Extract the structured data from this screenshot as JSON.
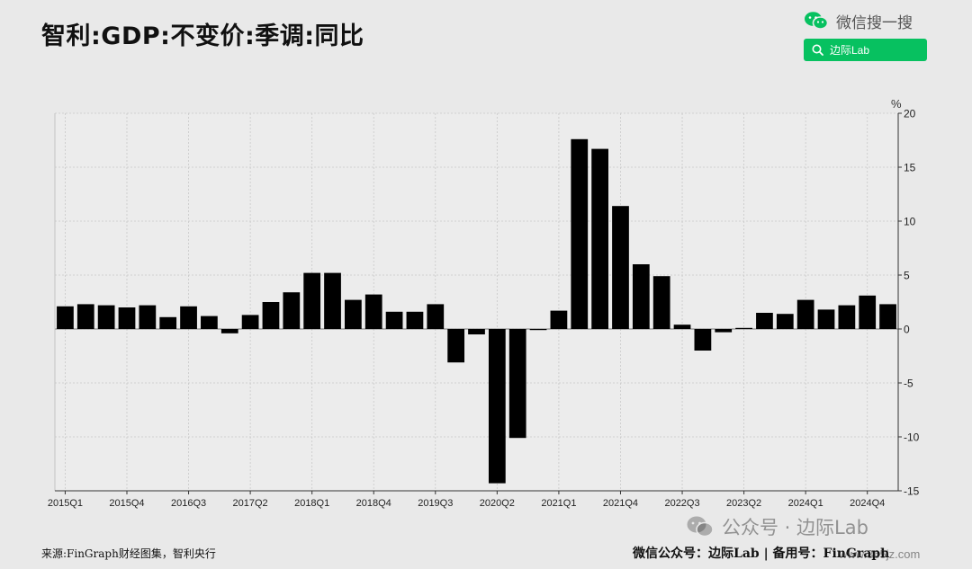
{
  "title": "智利:GDP:不变价:季调:同比",
  "wechat_brand": {
    "label": "微信搜一搜",
    "icon": "wechat-icon"
  },
  "search": {
    "label": "边际Lab",
    "icon": "search-icon",
    "color": "#07c160"
  },
  "footer": {
    "source": "来源:FinGraph财经图集，智利央行",
    "right": "微信公众号：边际Lab  |  备用号：FinGraph"
  },
  "watermark": {
    "text": "公众号 · 边际Lab",
    "icon": "wechat-icon"
  },
  "site_watermark": "www.365jz.com",
  "chart_data": {
    "type": "bar",
    "ylabel": "%",
    "ylim": [
      -15,
      20
    ],
    "yticks": [
      20,
      15,
      10,
      5,
      0,
      -5,
      -10,
      -15
    ],
    "grid": true,
    "bar_color": "#000000",
    "categories": [
      "2015Q1",
      "2015Q2",
      "2015Q3",
      "2015Q4",
      "2016Q1",
      "2016Q2",
      "2016Q3",
      "2016Q4",
      "2017Q1",
      "2017Q2",
      "2017Q3",
      "2017Q4",
      "2018Q1",
      "2018Q2",
      "2018Q3",
      "2018Q4",
      "2019Q1",
      "2019Q2",
      "2019Q3",
      "2019Q4",
      "2020Q1",
      "2020Q2",
      "2020Q3",
      "2020Q4",
      "2021Q1",
      "2021Q2",
      "2021Q3",
      "2021Q4",
      "2022Q1",
      "2022Q2",
      "2022Q3",
      "2022Q4",
      "2023Q1",
      "2023Q2",
      "2023Q3",
      "2023Q4",
      "2024Q1",
      "2024Q2",
      "2024Q3",
      "2024Q4",
      "2025Q1"
    ],
    "values": [
      2.1,
      2.3,
      2.2,
      2.0,
      2.2,
      1.1,
      2.1,
      1.2,
      -0.4,
      1.3,
      2.5,
      3.4,
      5.2,
      5.2,
      2.7,
      3.2,
      1.6,
      1.6,
      2.3,
      -3.1,
      -0.5,
      -14.3,
      -10.1,
      -0.1,
      1.7,
      17.6,
      16.7,
      11.4,
      6.0,
      4.9,
      0.4,
      -2.0,
      -0.3,
      0.1,
      1.5,
      1.4,
      2.7,
      1.8,
      2.2,
      3.1,
      2.3
    ],
    "xtick_labels": [
      "2015Q1",
      "2015Q4",
      "2016Q3",
      "2017Q2",
      "2018Q1",
      "2018Q4",
      "2019Q3",
      "2020Q2",
      "2021Q1",
      "2021Q4",
      "2022Q3",
      "2023Q2",
      "2024Q1",
      "2024Q4"
    ]
  }
}
